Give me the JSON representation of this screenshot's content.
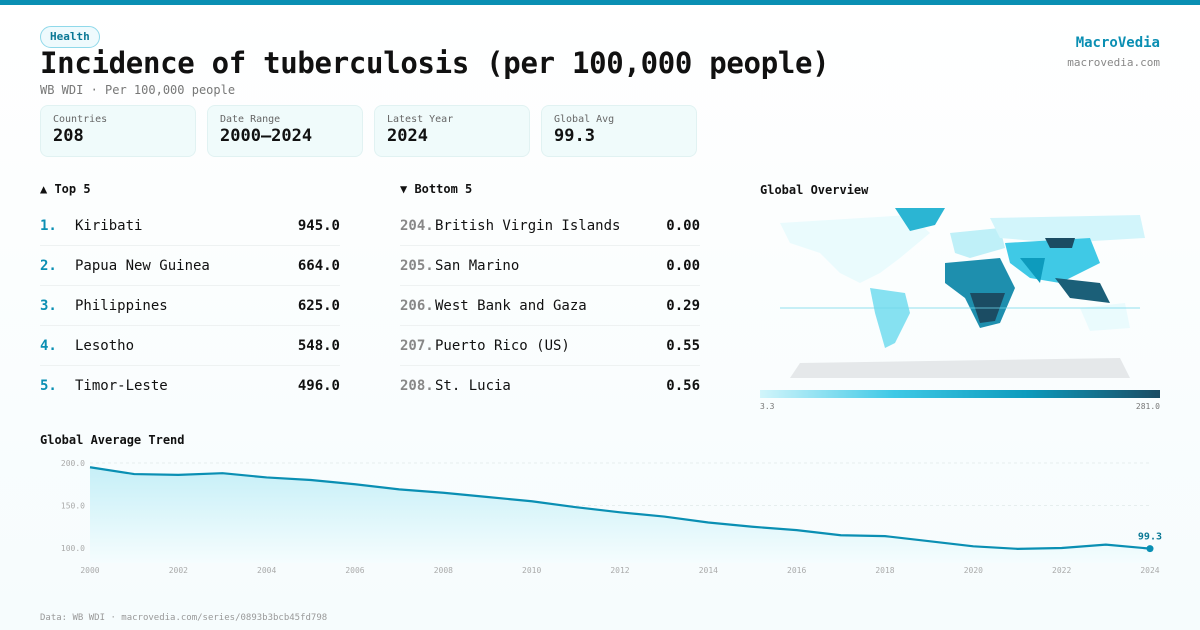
{
  "header": {
    "tag": "Health",
    "title": "Incidence of tuberculosis (per 100,000 people)",
    "subtitle": "WB WDI · Per 100,000 people",
    "brand": "MacroVedia",
    "brand_url": "macrovedia.com"
  },
  "stats": [
    {
      "label": "Countries",
      "value": "208"
    },
    {
      "label": "Date Range",
      "value": "2000–2024"
    },
    {
      "label": "Latest Year",
      "value": "2024"
    },
    {
      "label": "Global Avg",
      "value": "99.3"
    }
  ],
  "top": {
    "title": "▲ Top 5",
    "items": [
      {
        "rank": "1.",
        "name": "Kiribati",
        "value": "945.0"
      },
      {
        "rank": "2.",
        "name": "Papua New Guinea",
        "value": "664.0"
      },
      {
        "rank": "3.",
        "name": "Philippines",
        "value": "625.0"
      },
      {
        "rank": "4.",
        "name": "Lesotho",
        "value": "548.0"
      },
      {
        "rank": "5.",
        "name": "Timor-Leste",
        "value": "496.0"
      }
    ]
  },
  "bottom": {
    "title": "▼ Bottom 5",
    "items": [
      {
        "rank": "204.",
        "name": "British Virgin Islands",
        "value": "0.00"
      },
      {
        "rank": "205.",
        "name": "San Marino",
        "value": "0.00"
      },
      {
        "rank": "206.",
        "name": "West Bank and Gaza",
        "value": "0.29"
      },
      {
        "rank": "207.",
        "name": "Puerto Rico (US)",
        "value": "0.55"
      },
      {
        "rank": "208.",
        "name": "St. Lucia",
        "value": "0.56"
      }
    ]
  },
  "map": {
    "title": "Global Overview",
    "legend_min": "3.3",
    "legend_max": "281.0",
    "colors": [
      "#d2f5fb",
      "#3fc9e6",
      "#0d9bbd",
      "#1b4c63"
    ]
  },
  "chart_data": {
    "type": "area",
    "title": "Global Average Trend",
    "x": [
      2000,
      2001,
      2002,
      2003,
      2004,
      2005,
      2006,
      2007,
      2008,
      2009,
      2010,
      2011,
      2012,
      2013,
      2014,
      2015,
      2016,
      2017,
      2018,
      2019,
      2020,
      2021,
      2022,
      2023,
      2024
    ],
    "values": [
      195,
      187,
      186,
      188,
      183,
      180,
      175,
      169,
      165,
      160,
      155,
      148,
      142,
      137,
      130,
      125,
      121,
      115,
      114,
      108,
      102,
      99,
      100,
      104,
      99.3
    ],
    "yticks": [
      "100.0",
      "150.0",
      "200.0"
    ],
    "xticks": [
      "2000",
      "2002",
      "2004",
      "2006",
      "2008",
      "2010",
      "2012",
      "2014",
      "2016",
      "2018",
      "2020",
      "2022",
      "2024"
    ],
    "ylim": [
      100,
      200
    ],
    "last_label": "99.3",
    "color": "#0a8fb3",
    "grid": true
  },
  "footer": "Data: WB WDI · macrovedia.com/series/0893b3bcb45fd798"
}
